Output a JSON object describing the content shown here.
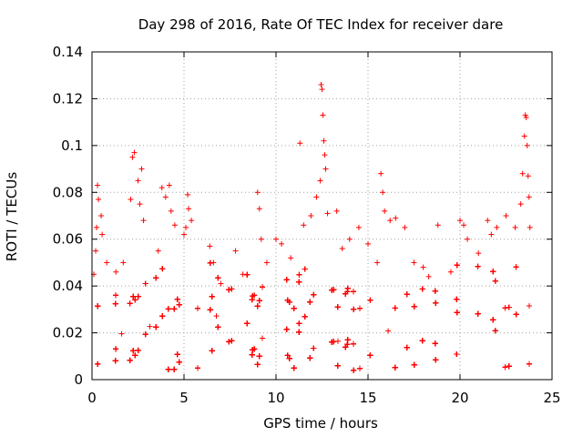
{
  "chart_data": {
    "type": "scatter",
    "title": "Day 298 of 2016, Rate Of TEC Index for receiver dare",
    "xlabel": "GPS time / hours",
    "ylabel": "ROTI / TECUs",
    "xlim": [
      0,
      25
    ],
    "ylim": [
      0,
      0.14
    ],
    "xticks": [
      0,
      5,
      10,
      15,
      20,
      25
    ],
    "xtick_labels": [
      "0",
      "5",
      "10",
      "15",
      "20",
      "25"
    ],
    "yticks": [
      0,
      0.02,
      0.04,
      0.06,
      0.08,
      0.1,
      0.12,
      0.14
    ],
    "ytick_labels": [
      "0",
      "0.02",
      "0.04",
      "0.06",
      "0.08",
      "0.1",
      "0.12",
      "0.14"
    ],
    "grid": true,
    "marker": "+",
    "color": "#ff0000",
    "series": [
      {
        "name": "ROTI",
        "points": [
          [
            0.1,
            0.045
          ],
          [
            0.2,
            0.055
          ],
          [
            0.25,
            0.065
          ],
          [
            0.3,
            0.083
          ],
          [
            0.35,
            0.077
          ],
          [
            0.5,
            0.07
          ],
          [
            0.55,
            0.062
          ],
          [
            0.8,
            0.05
          ],
          [
            1.3,
            0.046
          ],
          [
            1.7,
            0.05
          ],
          [
            2.1,
            0.077
          ],
          [
            2.2,
            0.095
          ],
          [
            2.3,
            0.097
          ],
          [
            2.5,
            0.085
          ],
          [
            2.6,
            0.075
          ],
          [
            2.7,
            0.09
          ],
          [
            2.8,
            0.068
          ],
          [
            3.6,
            0.055
          ],
          [
            3.8,
            0.082
          ],
          [
            4.0,
            0.078
          ],
          [
            4.2,
            0.083
          ],
          [
            4.3,
            0.072
          ],
          [
            4.5,
            0.066
          ],
          [
            5.0,
            0.062
          ],
          [
            5.1,
            0.065
          ],
          [
            5.2,
            0.079
          ],
          [
            5.25,
            0.073
          ],
          [
            5.4,
            0.068
          ],
          [
            6.4,
            0.057
          ],
          [
            6.6,
            0.05
          ],
          [
            7.0,
            0.041
          ],
          [
            7.8,
            0.055
          ],
          [
            8.2,
            0.045
          ],
          [
            9.0,
            0.08
          ],
          [
            9.1,
            0.073
          ],
          [
            9.2,
            0.06
          ],
          [
            9.5,
            0.05
          ],
          [
            10.0,
            0.06
          ],
          [
            10.3,
            0.058
          ],
          [
            10.8,
            0.052
          ],
          [
            11.3,
            0.101
          ],
          [
            11.5,
            0.066
          ],
          [
            11.9,
            0.07
          ],
          [
            12.2,
            0.078
          ],
          [
            12.4,
            0.085
          ],
          [
            12.45,
            0.126
          ],
          [
            12.5,
            0.124
          ],
          [
            12.55,
            0.113
          ],
          [
            12.6,
            0.102
          ],
          [
            12.65,
            0.096
          ],
          [
            12.7,
            0.09
          ],
          [
            12.8,
            0.071
          ],
          [
            13.3,
            0.072
          ],
          [
            13.6,
            0.056
          ],
          [
            14.0,
            0.06
          ],
          [
            14.5,
            0.065
          ],
          [
            15.0,
            0.058
          ],
          [
            15.5,
            0.05
          ],
          [
            15.7,
            0.088
          ],
          [
            15.8,
            0.08
          ],
          [
            15.9,
            0.072
          ],
          [
            16.2,
            0.068
          ],
          [
            16.5,
            0.069
          ],
          [
            17.0,
            0.065
          ],
          [
            17.5,
            0.05
          ],
          [
            18.0,
            0.048
          ],
          [
            18.3,
            0.044
          ],
          [
            18.8,
            0.066
          ],
          [
            19.5,
            0.046
          ],
          [
            20.0,
            0.068
          ],
          [
            20.2,
            0.066
          ],
          [
            20.4,
            0.06
          ],
          [
            21.0,
            0.054
          ],
          [
            21.5,
            0.068
          ],
          [
            21.7,
            0.062
          ],
          [
            22.0,
            0.065
          ],
          [
            22.5,
            0.07
          ],
          [
            23.0,
            0.065
          ],
          [
            23.3,
            0.075
          ],
          [
            23.4,
            0.088
          ],
          [
            23.5,
            0.104
          ],
          [
            23.55,
            0.113
          ],
          [
            23.6,
            0.112
          ],
          [
            23.65,
            0.1
          ],
          [
            23.7,
            0.087
          ],
          [
            23.75,
            0.078
          ],
          [
            23.8,
            0.065
          ]
        ]
      }
    ],
    "dense_band": {
      "description_hidden": true,
      "x_range": [
        0,
        23.9
      ],
      "y_range": [
        0.004,
        0.03
      ],
      "scattered_mid_range": [
        0.03,
        0.05
      ]
    }
  }
}
